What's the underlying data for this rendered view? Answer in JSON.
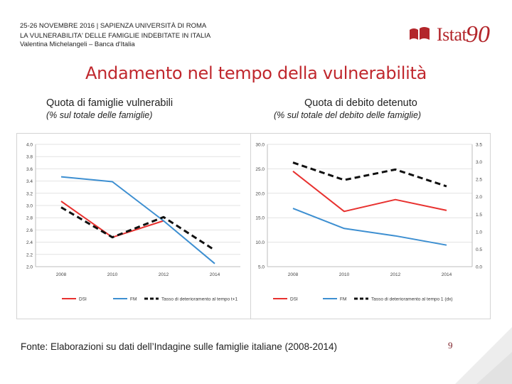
{
  "header": {
    "line1": "25-26 NOVEMBRE 2016 | SAPIENZA UNIVERSITÀ DI ROMA",
    "line2": "LA VULNERABILITA' DELLE FAMIGLIE INDEBITATE IN ITALIA",
    "line3": "Valentina Michelangeli – Banca d'Italia"
  },
  "logo": {
    "word": "Istat",
    "number": "90",
    "brand_color": "#b3262b"
  },
  "title": "Andamento nel tempo della vulnerabilità",
  "left_panel": {
    "heading": "Quota di famiglie vulnerabili",
    "subheading": "(% sul totale delle famiglie)"
  },
  "right_panel": {
    "heading": "Quota di debito detenuto",
    "subheading": "(% sul totale del debito delle famiglie)"
  },
  "chart_data": [
    {
      "type": "line",
      "title": "Quota di famiglie vulnerabili",
      "categories": [
        "2008",
        "2010",
        "2012",
        "2014"
      ],
      "ylim": [
        2.0,
        4.0
      ],
      "yticks": [
        "4.0",
        "3.8",
        "3.6",
        "3.4",
        "3.2",
        "3.0",
        "2.8",
        "2.6",
        "2.4",
        "2.2",
        "2.0"
      ],
      "series": [
        {
          "name": "DSI",
          "color": "#e8312f",
          "dash": false,
          "values": [
            3.07,
            2.48,
            2.75,
            null
          ]
        },
        {
          "name": "FM",
          "color": "#3d8fd1",
          "dash": false,
          "values": [
            3.47,
            3.39,
            2.75,
            2.05
          ]
        },
        {
          "name": "Tasso di deterioramento al tempo t+1",
          "color": "#111111",
          "dash": true,
          "values": [
            2.97,
            2.48,
            2.81,
            2.27
          ]
        }
      ]
    },
    {
      "type": "line",
      "title": "Quota di debito detenuto",
      "categories": [
        "2008",
        "2010",
        "2012",
        "2014"
      ],
      "ylim": [
        5.0,
        30.0
      ],
      "yticks": [
        "30.0",
        "25.0",
        "20.0",
        "15.0",
        "10.0",
        "5.0"
      ],
      "y2lim": [
        0.0,
        3.5
      ],
      "y2ticks": [
        "3.5",
        "3.0",
        "2.5",
        "2.0",
        "1.5",
        "1.0",
        "0.5",
        "0.0"
      ],
      "series": [
        {
          "name": "DSI",
          "color": "#e8312f",
          "dash": false,
          "axis": "left",
          "values": [
            24.5,
            16.3,
            18.7,
            16.5
          ]
        },
        {
          "name": "FM",
          "color": "#3d8fd1",
          "dash": false,
          "axis": "left",
          "values": [
            16.9,
            12.8,
            11.3,
            9.4
          ]
        },
        {
          "name": "Tasso di deterioramento al tempo 1 (dx)",
          "color": "#111111",
          "dash": true,
          "axis": "right",
          "values": [
            2.98,
            2.48,
            2.78,
            2.3
          ]
        }
      ]
    }
  ],
  "footer": {
    "source": "Fonte: Elaborazioni su dati dell’Indagine sulle famiglie italiane (2008-2014)",
    "page": "9"
  }
}
